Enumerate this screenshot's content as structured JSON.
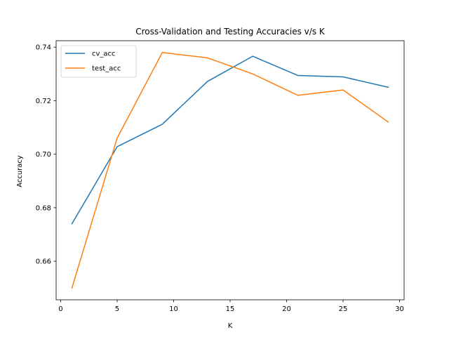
{
  "chart_data": {
    "type": "line",
    "title": "Cross-Validation and Testing Accuracies v/s K",
    "xlabel": "K",
    "ylabel": "Accuracy",
    "xlim": [
      -0.4,
      30.4
    ],
    "ylim": [
      0.6456,
      0.7424
    ],
    "xticks": [
      0,
      5,
      10,
      15,
      20,
      25,
      30
    ],
    "yticks": [
      0.66,
      0.68,
      0.7,
      0.72,
      0.74
    ],
    "ytick_labels": [
      "0.66",
      "0.68",
      "0.70",
      "0.72",
      "0.74"
    ],
    "grid": false,
    "legend_position": "upper left",
    "x": [
      1,
      5,
      9,
      13,
      17,
      21,
      25,
      29
    ],
    "series": [
      {
        "name": "cv_acc",
        "color": "#1f77b4",
        "values": [
          0.674,
          0.7028,
          0.7112,
          0.7272,
          0.7366,
          0.7294,
          0.7289,
          0.725
        ]
      },
      {
        "name": "test_acc",
        "color": "#ff7f0e",
        "values": [
          0.65,
          0.706,
          0.738,
          0.736,
          0.73,
          0.722,
          0.724,
          0.712
        ]
      }
    ]
  }
}
